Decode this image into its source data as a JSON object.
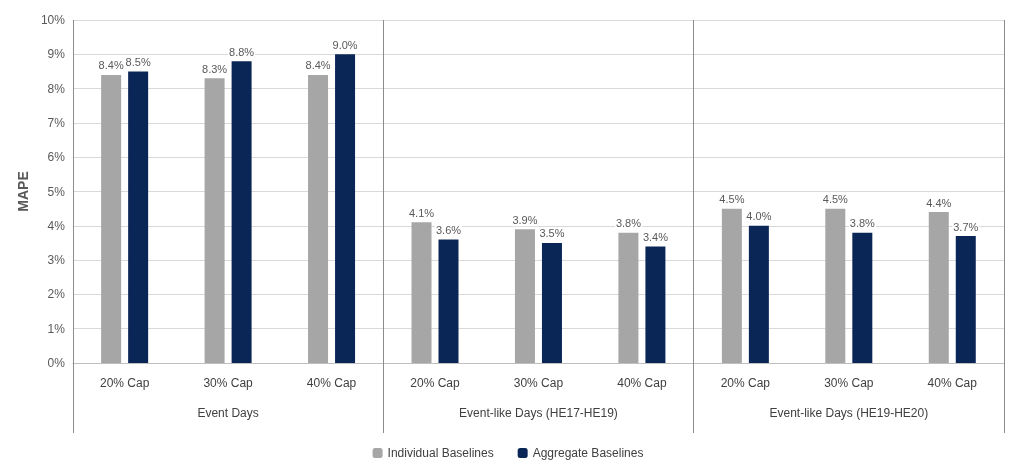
{
  "chart_data": {
    "type": "bar",
    "ylabel": "MAPE",
    "categories": [
      "20% Cap",
      "30% Cap",
      "40% Cap",
      "20% Cap",
      "30% Cap",
      "40% Cap",
      "20% Cap",
      "30% Cap",
      "40% Cap"
    ],
    "annotations": [
      "Event Days",
      "Event-like Days (HE17-HE19)",
      "Event-like Days (HE19-HE20)"
    ],
    "series": [
      {
        "name": "Individual Baselines",
        "color": "#a6a6a6",
        "values": [
          8.4,
          8.3,
          8.4,
          4.1,
          3.9,
          3.8,
          4.5,
          4.5,
          4.4
        ],
        "value_labels": [
          "8.4%",
          "8.3%",
          "8.4%",
          "4.1%",
          "3.9%",
          "3.8%",
          "4.5%",
          "4.5%",
          "4.4%"
        ]
      },
      {
        "name": "Aggregate Baselines",
        "color": "#0a2657",
        "values": [
          8.5,
          8.8,
          9.0,
          3.6,
          3.5,
          3.4,
          4.0,
          3.8,
          3.7
        ],
        "value_labels": [
          "8.5%",
          "8.8%",
          "9.0%",
          "3.6%",
          "3.5%",
          "3.4%",
          "4.0%",
          "3.8%",
          "3.7%"
        ]
      }
    ],
    "ylim": [
      0,
      10
    ],
    "yticks": [
      {
        "value": 0,
        "label": "0%"
      },
      {
        "value": 1,
        "label": "1%"
      },
      {
        "value": 2,
        "label": "2%"
      },
      {
        "value": 3,
        "label": "3%"
      },
      {
        "value": 4,
        "label": "4%"
      },
      {
        "value": 5,
        "label": "5%"
      },
      {
        "value": 6,
        "label": "6%"
      },
      {
        "value": 7,
        "label": "7%"
      },
      {
        "value": 8,
        "label": "8%"
      },
      {
        "value": 9,
        "label": "9%"
      },
      {
        "value": 10,
        "label": "10%"
      }
    ],
    "grid": "y",
    "legend": "bottom"
  }
}
